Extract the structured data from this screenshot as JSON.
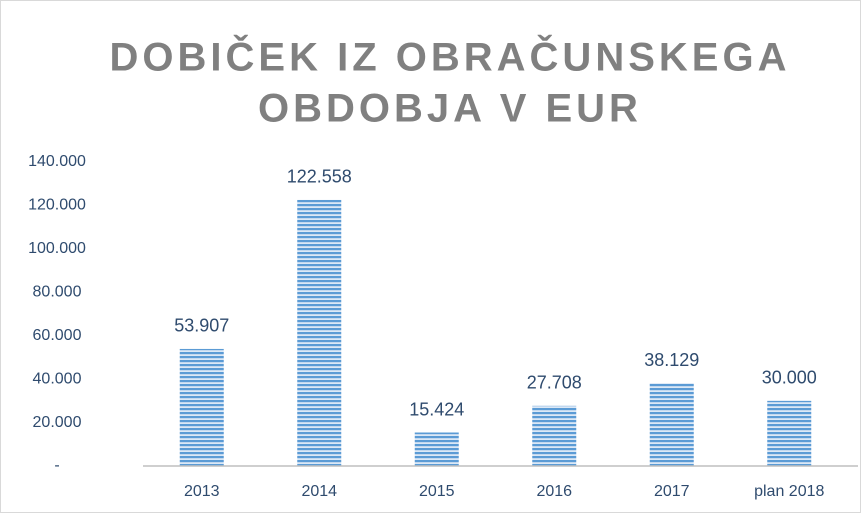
{
  "chart_data": {
    "type": "bar",
    "title": [
      "DOBIČEK IZ OBRAČUNSKEGA",
      "OBDOBJA V EUR"
    ],
    "categories": [
      "2013",
      "2014",
      "2015",
      "2016",
      "2017",
      "plan 2018"
    ],
    "values": [
      53907,
      122558,
      15424,
      27708,
      38129,
      30000
    ],
    "value_labels": [
      "53.907",
      "122.558",
      "15.424",
      "27.708",
      "38.129",
      "30.000"
    ],
    "color": "#5b9bd5",
    "ylim": [
      0,
      140000
    ],
    "yticks": [
      {
        "value": 0,
        "label": "-"
      },
      {
        "value": 20000,
        "label": "20.000"
      },
      {
        "value": 40000,
        "label": "40.000"
      },
      {
        "value": 60000,
        "label": "60.000"
      },
      {
        "value": 80000,
        "label": "80.000"
      },
      {
        "value": 100000,
        "label": "100.000"
      },
      {
        "value": 120000,
        "label": "120.000"
      },
      {
        "value": 140000,
        "label": "140.000"
      }
    ],
    "grid": false
  }
}
